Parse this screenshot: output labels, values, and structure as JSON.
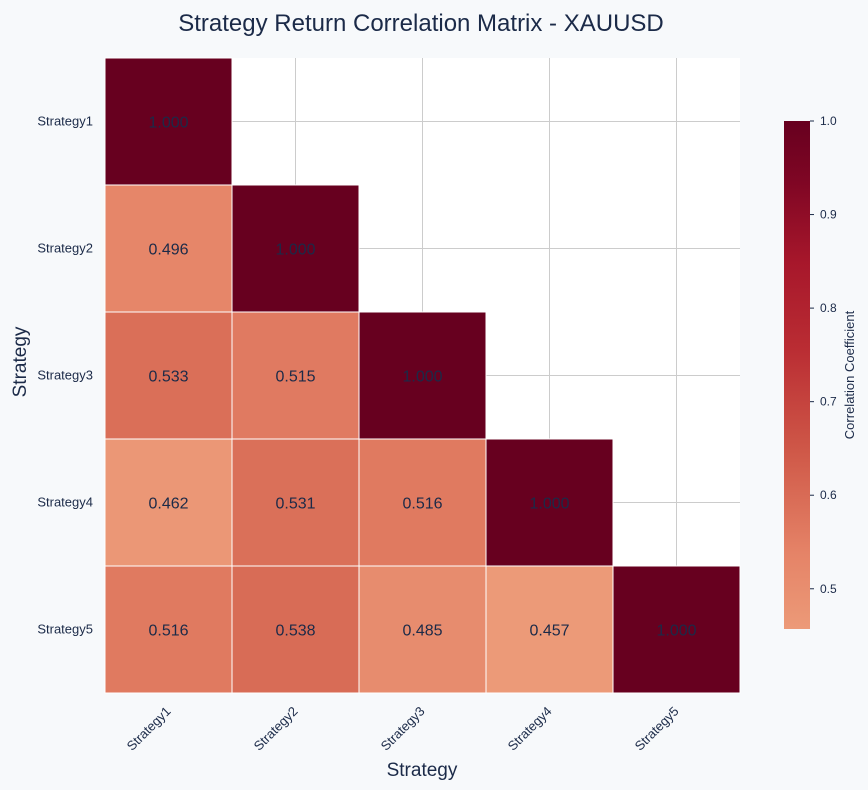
{
  "chart_data": {
    "type": "heatmap",
    "title": "Strategy Return Correlation Matrix - XAUUSD",
    "xlabel": "Strategy",
    "ylabel": "Strategy",
    "rows": [
      "Strategy1",
      "Strategy2",
      "Strategy3",
      "Strategy4",
      "Strategy5"
    ],
    "columns": [
      "Strategy1",
      "Strategy2",
      "Strategy3",
      "Strategy4",
      "Strategy5"
    ],
    "mask": "upper-triangle",
    "values": [
      [
        1.0,
        null,
        null,
        null,
        null
      ],
      [
        0.496,
        1.0,
        null,
        null,
        null
      ],
      [
        0.533,
        0.515,
        1.0,
        null,
        null
      ],
      [
        0.462,
        0.531,
        0.516,
        1.0,
        null
      ],
      [
        0.516,
        0.538,
        0.485,
        0.457,
        1.0
      ]
    ],
    "labels": [
      [
        "1.000",
        null,
        null,
        null,
        null
      ],
      [
        "0.496",
        "1.000",
        null,
        null,
        null
      ],
      [
        "0.533",
        "0.515",
        "1.000",
        null,
        null
      ],
      [
        "0.462",
        "0.531",
        "0.516",
        "1.000",
        null
      ],
      [
        "0.516",
        "0.538",
        "0.485",
        "0.457",
        "1.000"
      ]
    ],
    "colorbar": {
      "label": "Correlation Coefficient",
      "range": [
        0.457,
        1.0
      ],
      "ticks": [
        0.5,
        0.6,
        0.7,
        0.8,
        0.9,
        1.0
      ],
      "tick_labels": [
        "0.5",
        "0.6",
        "0.7",
        "0.8",
        "0.9",
        "1.0"
      ],
      "colormap": "reds"
    },
    "grid": true,
    "colors": {
      "background": "#f7f9fb",
      "plot_background": "#ffffff",
      "grid": "#cccccc",
      "text": "#1b2a48",
      "cell_border": "#ffffff"
    }
  }
}
